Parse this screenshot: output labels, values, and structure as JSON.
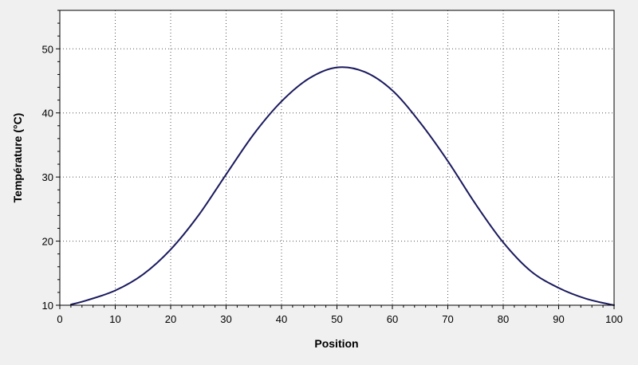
{
  "chart_data": {
    "type": "line",
    "title": "",
    "xlabel": "Position",
    "ylabel": "Température (°C)",
    "xlim": [
      0,
      100
    ],
    "ylim": [
      10,
      56
    ],
    "x_ticks": [
      "0",
      "10",
      "20",
      "30",
      "40",
      "50",
      "60",
      "70",
      "80",
      "90",
      "100"
    ],
    "y_ticks": [
      "10",
      "20",
      "30",
      "40",
      "50"
    ],
    "grid": true,
    "grid_style": "dotted",
    "legend": "none",
    "series": [
      {
        "color": "#1a1a5e",
        "x": [
          2,
          5,
          10,
          15,
          20,
          25,
          30,
          35,
          40,
          45,
          50,
          55,
          60,
          65,
          70,
          75,
          80,
          85,
          90,
          95,
          100
        ],
        "y": [
          10.1,
          10.8,
          12.3,
          14.8,
          18.7,
          24.0,
          30.4,
          36.7,
          41.8,
          45.4,
          47.1,
          46.4,
          43.5,
          38.5,
          32.5,
          25.8,
          19.8,
          15.3,
          12.7,
          11.0,
          10.0
        ]
      }
    ]
  }
}
